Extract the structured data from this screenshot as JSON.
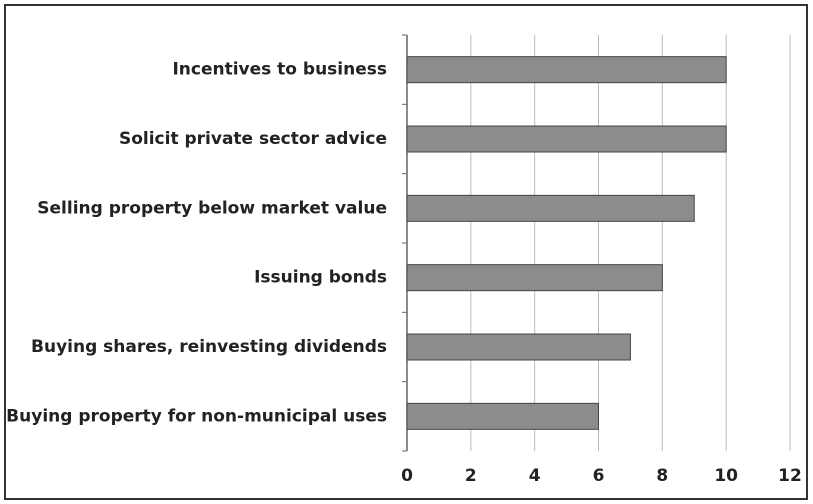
{
  "chart_data": {
    "type": "bar",
    "orientation": "horizontal",
    "categories": [
      "Incentives to business",
      "Solicit private sector advice",
      "Selling property below market value",
      "Issuing bonds",
      "Buying shares, reinvesting dividends",
      "Buying property for non-municipal uses"
    ],
    "values": [
      10,
      10,
      9,
      8,
      7,
      6
    ],
    "color": "#8c8c8c",
    "xlim": [
      0,
      12
    ],
    "xticks": [
      0,
      2,
      4,
      6,
      8,
      10,
      12
    ],
    "grid": true
  }
}
